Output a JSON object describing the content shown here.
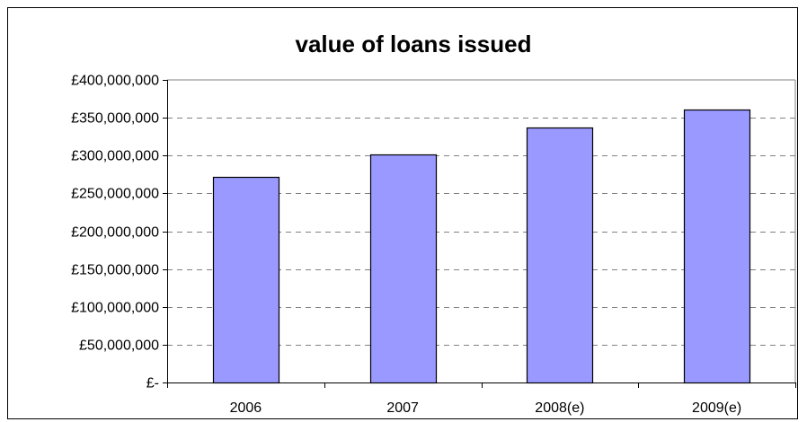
{
  "chart_data": {
    "type": "bar",
    "title": "value of loans issued",
    "xlabel": "",
    "ylabel": "",
    "categories": [
      "2006",
      "2007",
      "2008(e)",
      "2009(e)"
    ],
    "values": [
      272000000,
      301000000,
      337000000,
      361000000
    ],
    "ylim": [
      0,
      400000000
    ],
    "yticks": [
      0,
      50000000,
      100000000,
      150000000,
      200000000,
      250000000,
      300000000,
      350000000,
      400000000
    ],
    "ytick_labels": [
      "£-",
      "£50,000,000",
      "£100,000,000",
      "£150,000,000",
      "£200,000,000",
      "£250,000,000",
      "£300,000,000",
      "£350,000,000",
      "£400,000,000"
    ],
    "grid": true,
    "legend": false,
    "colors": {
      "bar_fill": "#9999ff",
      "bar_stroke": "#000000",
      "plot_border": "#808080",
      "gridline": "#808080"
    }
  }
}
